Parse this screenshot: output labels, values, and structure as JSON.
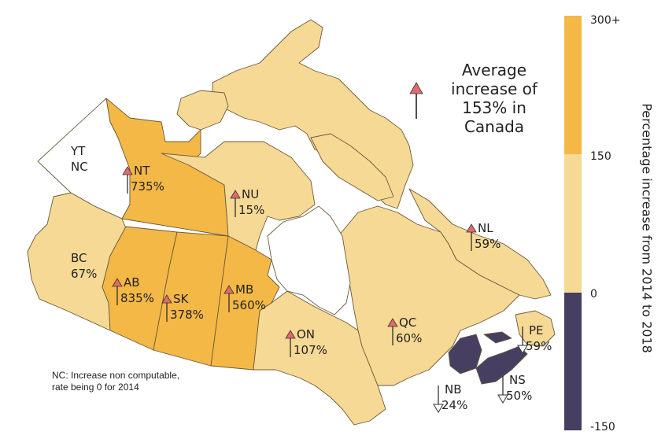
{
  "colors": {
    "high": "#f4b847",
    "mid": "#f6d995",
    "negative": "#463f62",
    "nc": "#ffffff",
    "up_arrow": "#e36a6a",
    "border": "#6b5a3a"
  },
  "provinces": [
    {
      "code": "YT",
      "value": "NC",
      "direction": "none",
      "color_class": "nc"
    },
    {
      "code": "NT",
      "value": "735%",
      "direction": "up",
      "color_class": "high"
    },
    {
      "code": "NU",
      "value": "15%",
      "direction": "up",
      "color_class": "mid"
    },
    {
      "code": "BC",
      "value": "67%",
      "direction": "none",
      "color_class": "mid"
    },
    {
      "code": "AB",
      "value": "835%",
      "direction": "up",
      "color_class": "high"
    },
    {
      "code": "SK",
      "value": "378%",
      "direction": "up",
      "color_class": "high"
    },
    {
      "code": "MB",
      "value": "560%",
      "direction": "up",
      "color_class": "high"
    },
    {
      "code": "ON",
      "value": "107%",
      "direction": "up",
      "color_class": "mid"
    },
    {
      "code": "QC",
      "value": "60%",
      "direction": "up",
      "color_class": "mid"
    },
    {
      "code": "NL",
      "value": "59%",
      "direction": "up",
      "color_class": "mid"
    },
    {
      "code": "PE",
      "value": "59%",
      "direction": "down",
      "color_class": "negative"
    },
    {
      "code": "NS",
      "value": "50%",
      "direction": "down",
      "color_class": "negative"
    },
    {
      "code": "NB",
      "value": "24%",
      "direction": "down",
      "color_class": "negative"
    }
  ],
  "summary": {
    "text": "Average increase of 153% in Canada",
    "direction": "up"
  },
  "note": "NC: Increase non computable,\nrate being 0 for 2014",
  "legend": {
    "title": "Percentage increase from 2014 to 2018",
    "ticks": [
      "300+",
      "150",
      "0",
      "-150"
    ],
    "bins": [
      {
        "from": 150,
        "to": 300,
        "color": "#f4b847"
      },
      {
        "from": 0,
        "to": 150,
        "color": "#f6d995"
      },
      {
        "from": -150,
        "to": 0,
        "color": "#463f62"
      }
    ]
  }
}
